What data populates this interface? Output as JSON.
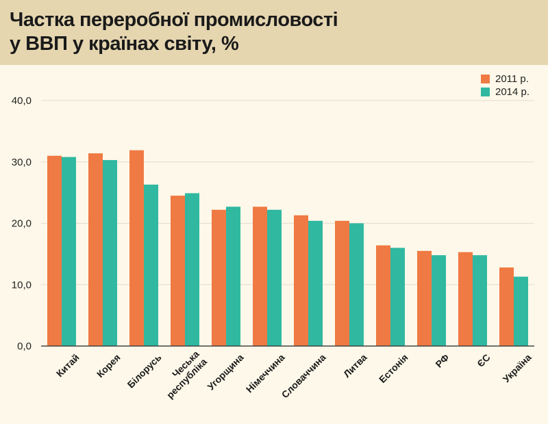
{
  "title_line1": "Частка переробної промисловості",
  "title_line2": "у ВВП у країнах світу, %",
  "colors": {
    "series_2011": "#f07a43",
    "series_2014": "#30b8a1",
    "grid": "#e2dccb",
    "axis": "#444444"
  },
  "chart_data": {
    "type": "bar",
    "title": "Частка переробної промисловості у ВВП у країнах світу, %",
    "categories": [
      "Китай",
      "Корея",
      "Білорусь",
      "Чеська\nреспубліка",
      "Угорщина",
      "Німеччина",
      "Словаччина",
      "Литва",
      "Естонія",
      "РФ",
      "ЄС",
      "Україна"
    ],
    "series": [
      {
        "name": "2011 р.",
        "values": [
          31.0,
          31.4,
          31.9,
          24.5,
          22.2,
          22.7,
          21.3,
          20.4,
          16.4,
          15.5,
          15.3,
          12.8
        ]
      },
      {
        "name": "2014 р.",
        "values": [
          30.8,
          30.3,
          26.3,
          24.9,
          22.7,
          22.2,
          20.4,
          20.0,
          16.0,
          14.8,
          14.8,
          11.3
        ]
      }
    ],
    "yticks": [
      "0,0",
      "10,0",
      "20,0",
      "30,0",
      "40,0"
    ],
    "ytick_values": [
      0,
      10,
      20,
      30,
      40
    ],
    "ylim": [
      0,
      40
    ],
    "grid": true,
    "legend_position": "top-right"
  }
}
